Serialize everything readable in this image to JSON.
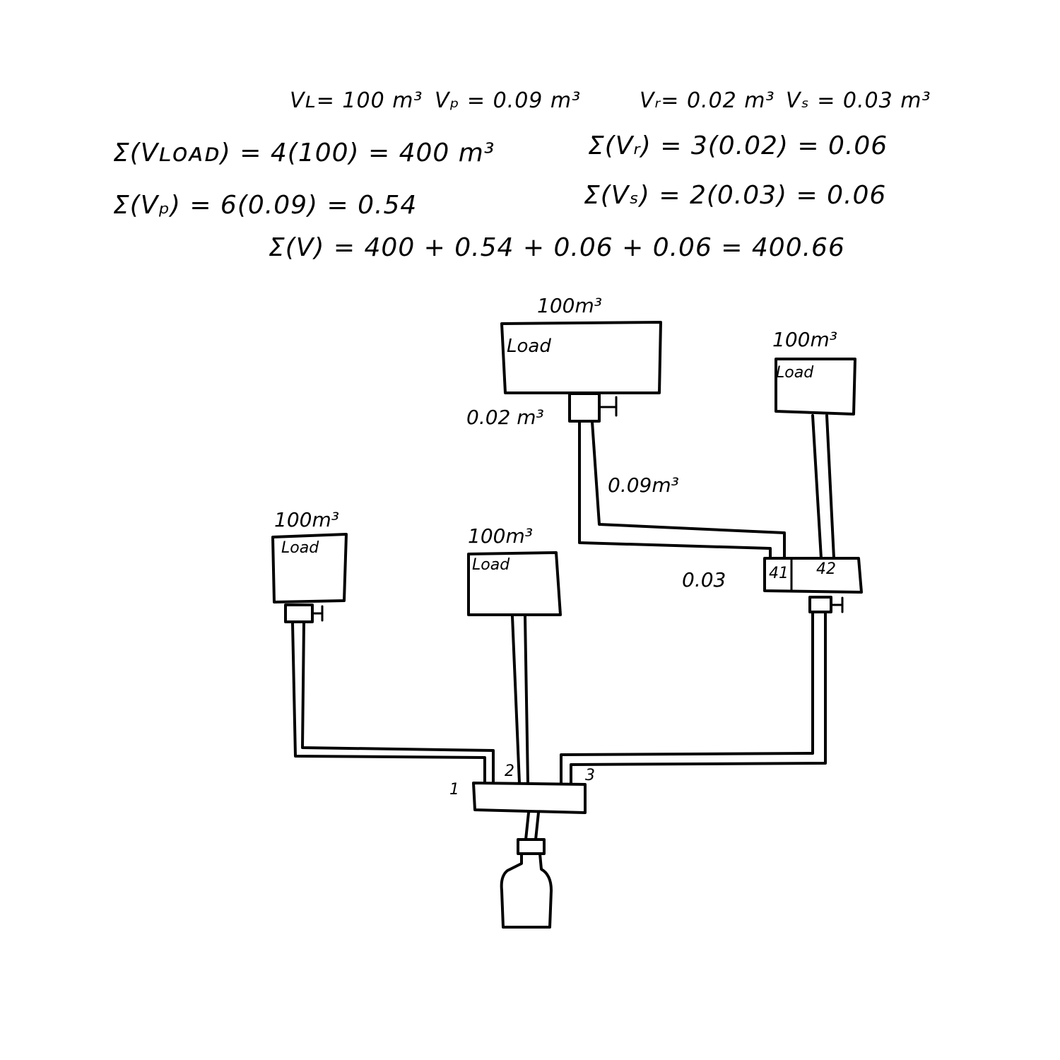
{
  "equations": {
    "definitions": {
      "load": "Vʟ= 100 m³",
      "pipe": "Vₚ = 0.09 m³",
      "regulator": "Vᵣ= 0.02 m³",
      "splitter": "Vₛ = 0.03 m³"
    },
    "sum_load": "Σ(Vʟᴏᴀᴅ) = 4(100) = 400 m³",
    "sum_regulator": "Σ(Vᵣ) = 3(0.02) = 0.06",
    "sum_pipe": "Σ(Vₚ) = 6(0.09) = 0.54",
    "sum_splitter": "Σ(Vₛ) = 2(0.03) = 0.06",
    "sum_total": "Σ(V) = 400 + 0.54 + 0.06 + 0.06 = 400.66"
  },
  "diagram": {
    "loads": [
      {
        "volume": "100m³",
        "label": "Load"
      },
      {
        "volume": "100m³",
        "label": "Load"
      },
      {
        "volume": "100m³",
        "label": "Load"
      },
      {
        "volume": "100m³",
        "label": "Load"
      }
    ],
    "regulator_label": "0.02 m³",
    "pipe_label": "0.09m³",
    "splitter_upper": {
      "volume": "0.03",
      "port_1": "41",
      "port_2": "42"
    },
    "splitter_lower_ports": [
      "1",
      "2",
      "3"
    ]
  }
}
